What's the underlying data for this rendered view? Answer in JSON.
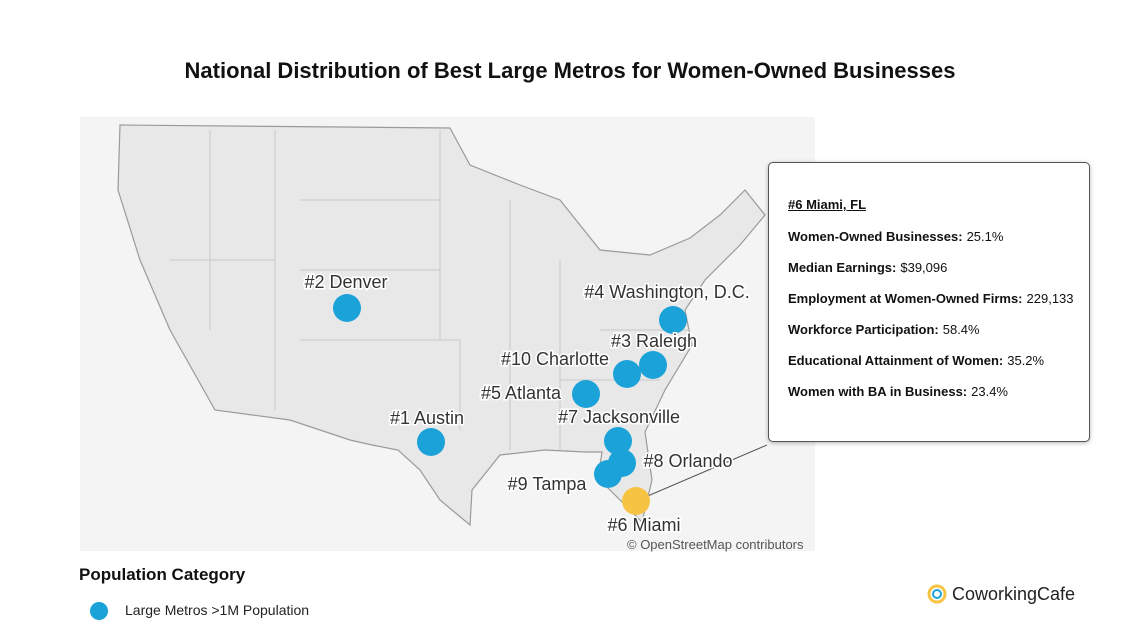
{
  "title": "National Distribution of Best Large Metros for Women-Owned Businesses",
  "map": {
    "attribution": "© OpenStreetMap contributors",
    "markers": [
      {
        "label": "#2 Denver",
        "color": "#1ba3d9"
      },
      {
        "label": "#4 Washington, D.C.",
        "color": "#1ba3d9"
      },
      {
        "label": "#3 Raleigh",
        "color": "#1ba3d9"
      },
      {
        "label": "#10 Charlotte",
        "color": "#1ba3d9"
      },
      {
        "label": "#5 Atlanta",
        "color": "#1ba3d9"
      },
      {
        "label": "#7 Jacksonville",
        "color": "#1ba3d9"
      },
      {
        "label": "#1 Austin",
        "color": "#1ba3d9"
      },
      {
        "label": "#8 Orlando",
        "color": "#1ba3d9"
      },
      {
        "label": "#9 Tampa",
        "color": "#1ba3d9"
      },
      {
        "label": "#6 Miami",
        "color": "#f6c343"
      }
    ]
  },
  "tooltip": {
    "title": "#6 Miami, FL",
    "rows": [
      {
        "label": "Women-Owned Businesses:",
        "value": "25.1%"
      },
      {
        "label": "Median Earnings:",
        "value": "$39,096"
      },
      {
        "label": "Employment at Women-Owned Firms:",
        "value": "229,133"
      },
      {
        "label": "Workforce Participation:",
        "value": "58.4%"
      },
      {
        "label": "Educational Attainment of Women:",
        "value": "35.2%"
      },
      {
        "label": "Women with BA in Business:",
        "value": "23.4%"
      }
    ]
  },
  "legend": {
    "title": "Population Category",
    "items": [
      {
        "label": "Large Metros >1M Population",
        "color": "#1ba3d9"
      }
    ]
  },
  "brand": "CoworkingCafe"
}
